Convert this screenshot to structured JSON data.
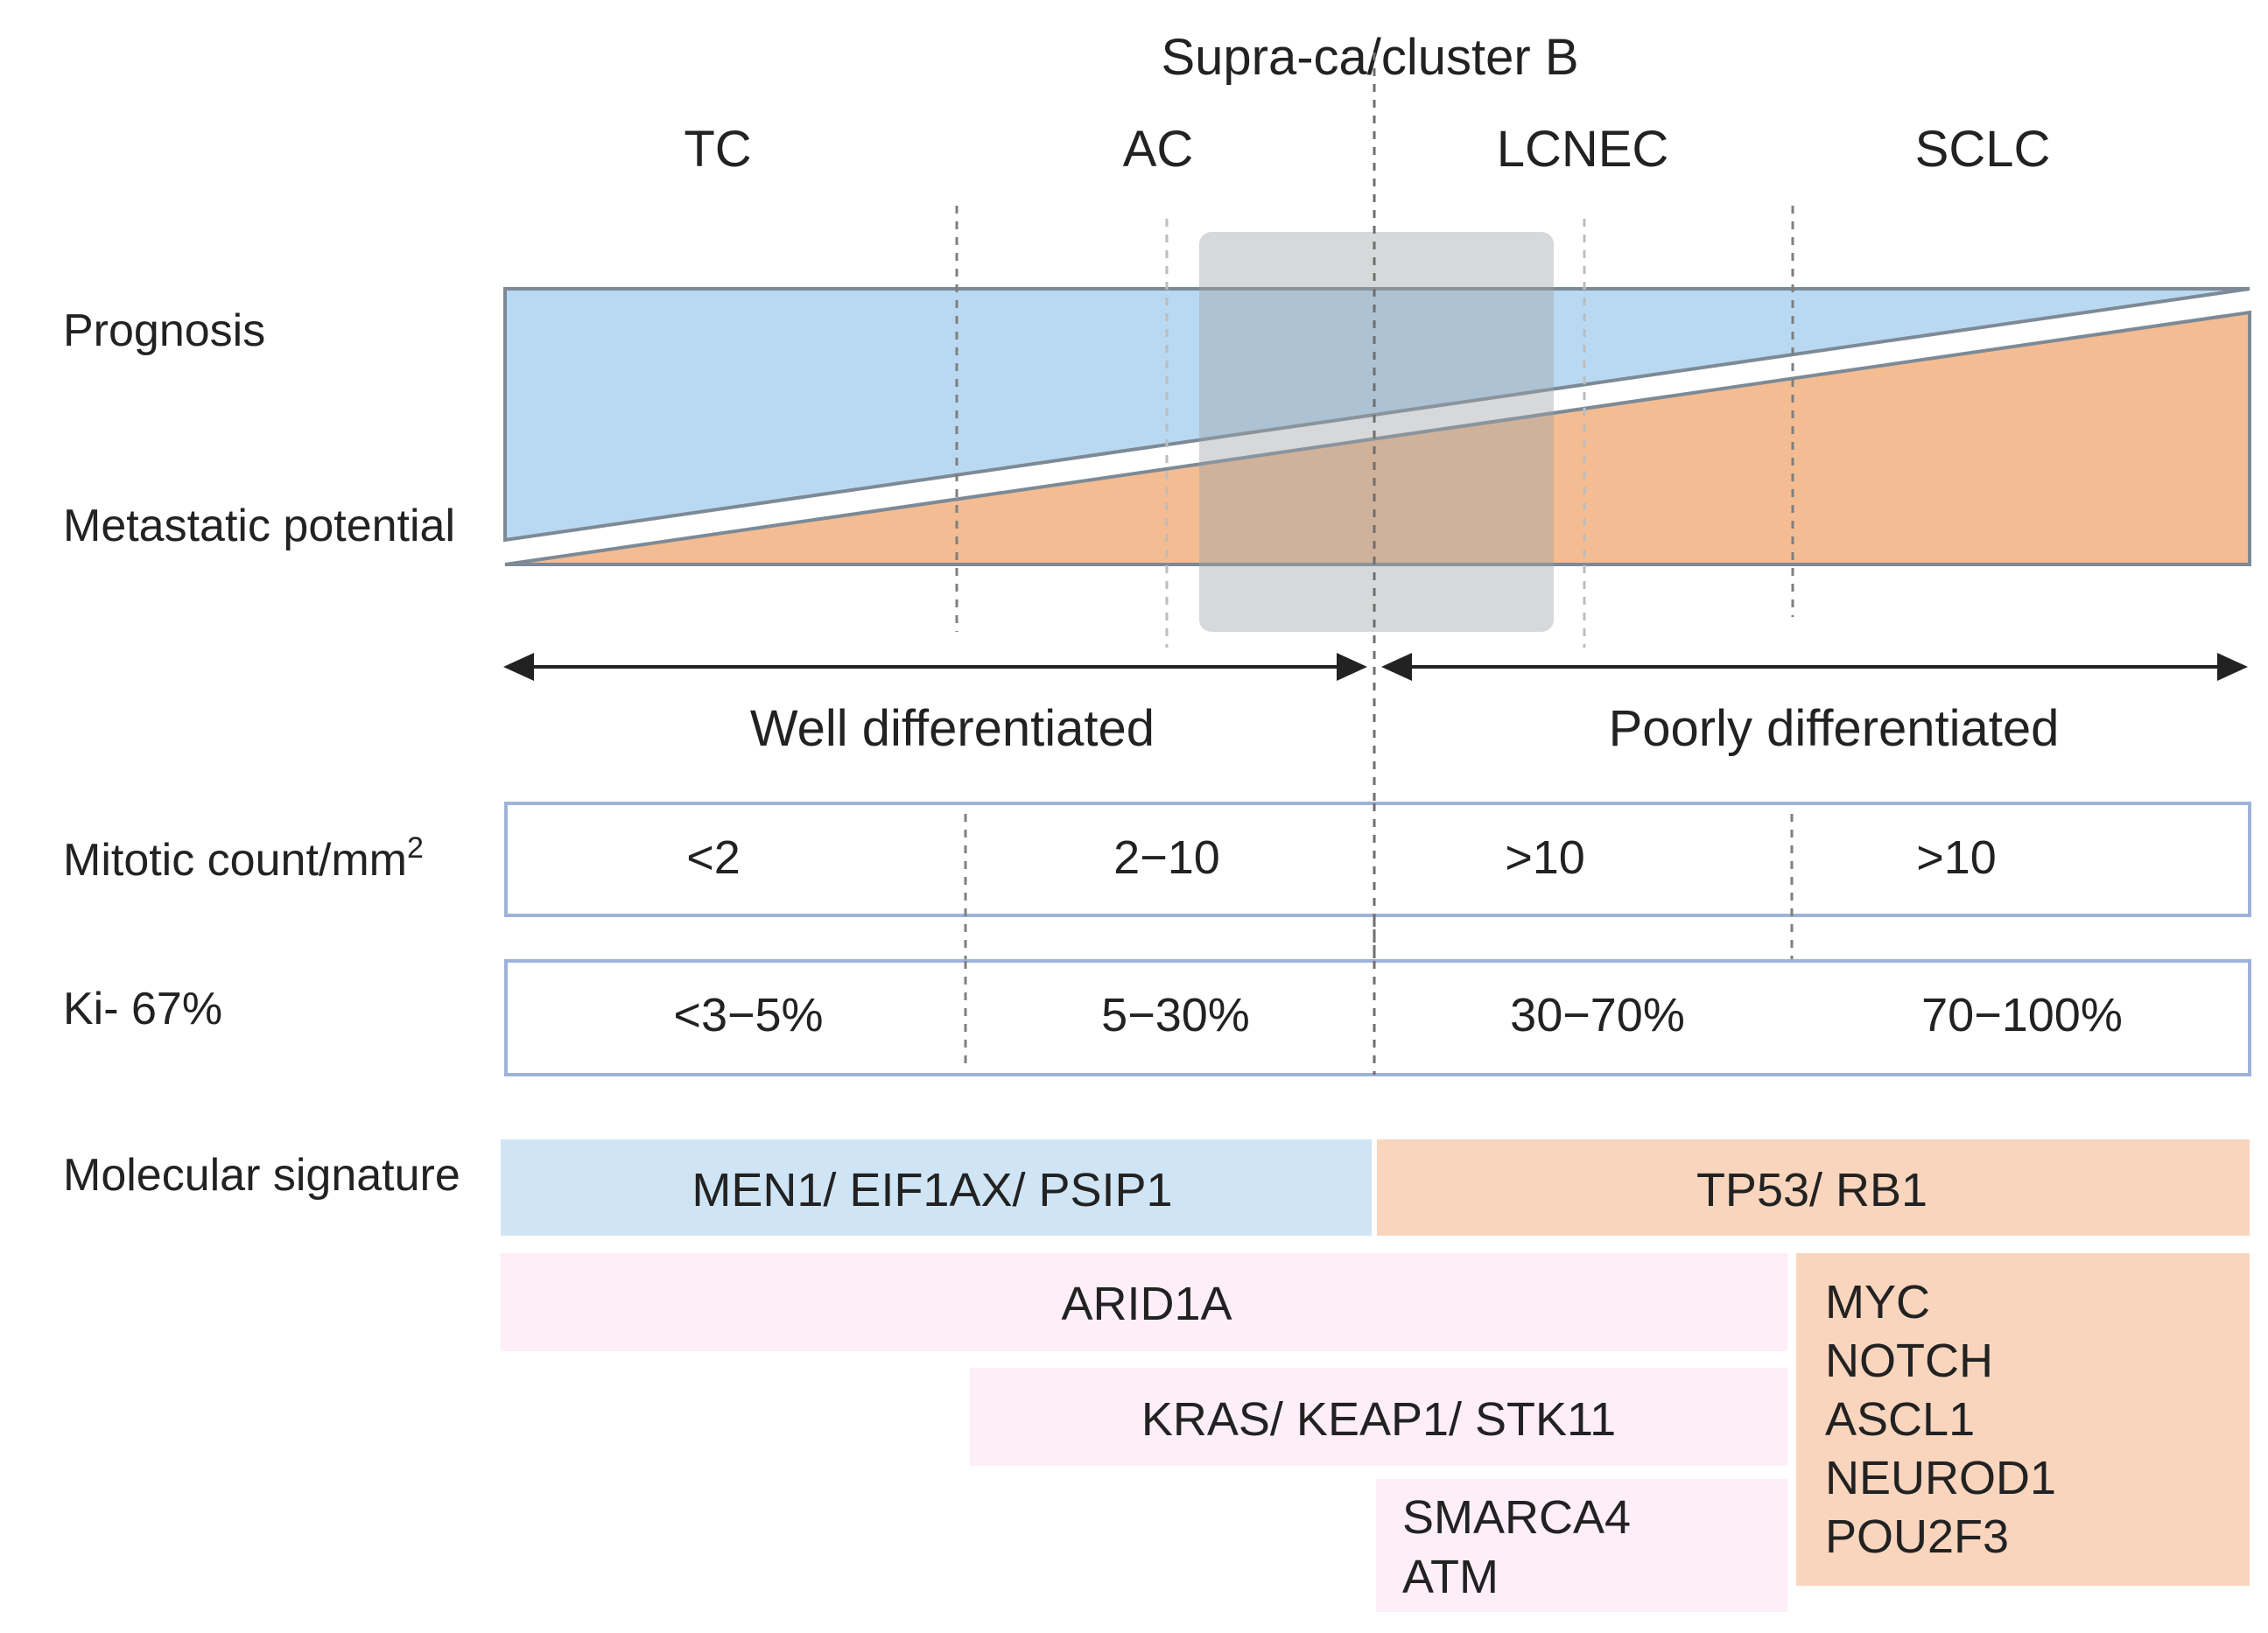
{
  "title_cluster": "Supra-ca/cluster B",
  "categories": [
    "TC",
    "AC",
    "LCNEC",
    "SCLC"
  ],
  "row_labels": {
    "prognosis": "Prognosis",
    "metastatic": "Metastatic potential",
    "mitotic_prefix": "Mitotic count/mm",
    "mitotic_sup": "2",
    "ki67": "Ki- 67%",
    "molecular": "Molecular signature"
  },
  "differentiation": {
    "well": "Well differentiated",
    "poor": "Poorly differentiated"
  },
  "mitotic_values": [
    "<2",
    "2−10",
    ">10",
    ">10"
  ],
  "ki67_values": [
    "<3−5%",
    "5−30%",
    "30−70%",
    "70−100%"
  ],
  "molecular": {
    "bar_left": "MEN1/ EIF1AX/ PSIP1",
    "bar_right": "TP53/ RB1",
    "arid1a": "ARID1A",
    "kras": "KRAS/ KEAP1/ STK11",
    "smarca4_lines": [
      "SMARCA4",
      "ATM"
    ],
    "sclc_genes": [
      "MYC",
      "NOTCH",
      "ASCL1",
      "NEUROD1",
      "POU2F3"
    ]
  },
  "colors": {
    "prognosis_fill": "#b9d9f2",
    "metastatic_fill": "#f4bc92",
    "cluster_overlay": "#9ea3a8",
    "box_border": "#9fb3d9",
    "mol_blue": "#cfe5f5",
    "mol_orange": "#f9d5bd",
    "mol_pink": "#fdeef7"
  }
}
